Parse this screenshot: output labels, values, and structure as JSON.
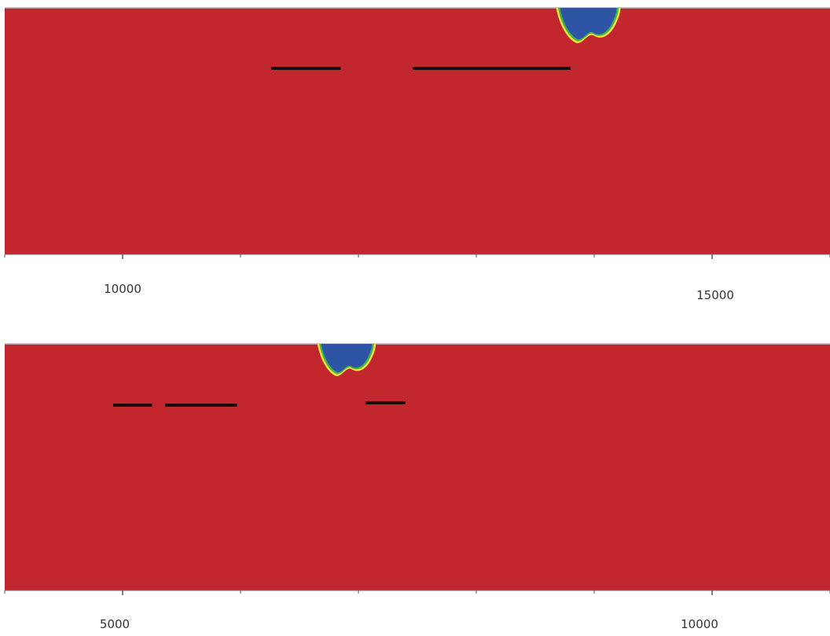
{
  "chart_data": [
    {
      "type": "heatmap",
      "panel": "top",
      "x_tick_labels": [
        "10000",
        "15000"
      ],
      "x_major_ticks": [
        10000,
        15000
      ],
      "x_minor_tick_step": 1000,
      "xlim": [
        9000,
        16000
      ],
      "colors": {
        "background_field": "#C1272D",
        "plume": "#2D54A5",
        "plume_edge": "#3FB34A",
        "plume_rim": "#F4E13A",
        "segment": "#1a0a0a"
      },
      "plume": {
        "x_center": 13950,
        "width": 480
      },
      "segments": [
        {
          "x_start": 11260,
          "x_end": 11850
        },
        {
          "x_start": 12460,
          "x_end": 13800
        }
      ]
    },
    {
      "type": "heatmap",
      "panel": "bottom",
      "x_tick_labels": [
        "5000",
        "10000"
      ],
      "x_major_ticks": [
        5000,
        10000
      ],
      "x_minor_tick_step": 1000,
      "xlim": [
        4000,
        11000
      ],
      "colors": {
        "background_field": "#C1272D",
        "plume": "#2D54A5",
        "plume_edge": "#3FB34A",
        "plume_rim": "#F4E13A",
        "segment": "#1a0a0a"
      },
      "plume": {
        "x_center": 6900,
        "width": 430
      },
      "segments": [
        {
          "x_start": 4920,
          "x_end": 5250
        },
        {
          "x_start": 5360,
          "x_end": 5970
        },
        {
          "x_start": 7060,
          "x_end": 7400
        }
      ]
    }
  ]
}
